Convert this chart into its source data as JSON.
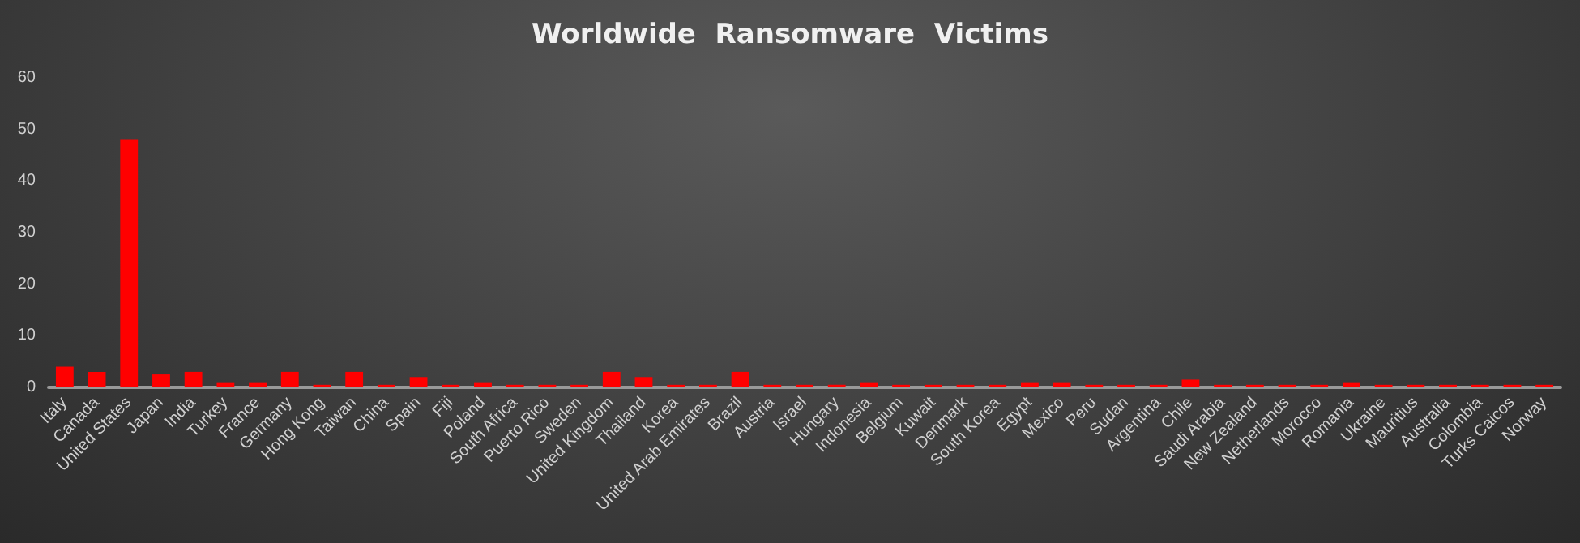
{
  "chart_data": {
    "type": "bar",
    "title": "Worldwide  Ransomware  Victims",
    "categories": [
      "Italy",
      "Canada",
      "United States",
      "Japan",
      "India",
      "Turkey",
      "France",
      "Germany",
      "Hong Kong",
      "Taiwan",
      "China",
      "Spain",
      "Fiji",
      "Poland",
      "South Africa",
      "Puerto Rico",
      "Sweden",
      "United Kingdom",
      "Thailand",
      "Korea",
      "United Arab Emirates",
      "Brazil",
      "Austria",
      "Israel",
      "Hungary",
      "Indonesia",
      "Belgium",
      "Kuwait",
      "Denmark",
      "South Korea",
      "Egypt",
      "Mexico",
      "Peru",
      "Sudan",
      "Argentina",
      "Chile",
      "Saudi Arabia",
      "New Zealand",
      "Netherlands",
      "Morocco",
      "Romania",
      "Ukraine",
      "Mauritius",
      "Australia",
      "Colombia",
      "Turks Caicos",
      "Norway"
    ],
    "values": [
      4,
      3,
      48,
      2.5,
      3,
      1,
      1,
      3,
      0.5,
      3,
      0.5,
      2,
      0.5,
      1,
      0.5,
      0.5,
      0.5,
      3,
      2,
      0.5,
      0.5,
      3,
      0.5,
      0.5,
      0.5,
      1,
      0.5,
      0.5,
      0.5,
      0.5,
      1,
      1,
      0.5,
      0.5,
      0.5,
      1.5,
      0.5,
      0.5,
      0.5,
      0.5,
      1,
      0.5,
      0.5,
      0.5,
      0.5,
      0.5,
      0.5
    ],
    "color": "#ff0000",
    "ylim": [
      0,
      60
    ],
    "yticks": [
      0,
      10,
      20,
      30,
      40,
      50,
      60
    ],
    "grid": false
  }
}
